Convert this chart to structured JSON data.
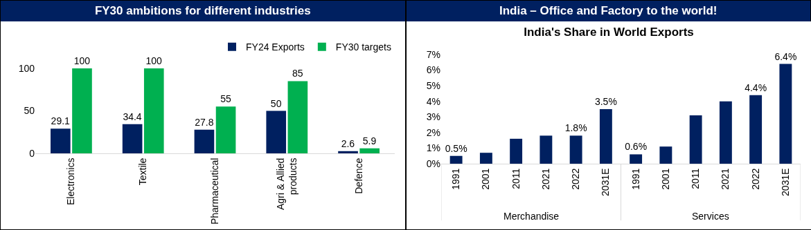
{
  "chart_data": [
    {
      "type": "bar",
      "title": "FY30 ambitions for different industries",
      "categories": [
        "Electronics",
        "Textile",
        "Pharmaceutical",
        "Agri & Allied products",
        "Defence"
      ],
      "series": [
        {
          "name": "FY24 Exports",
          "color": "#002060",
          "values": [
            29.1,
            34.4,
            27.8,
            50,
            2.6
          ]
        },
        {
          "name": "FY30 targets",
          "color": "#00b050",
          "values": [
            100,
            100,
            55,
            85,
            5.9
          ]
        }
      ],
      "ylim": [
        0,
        100
      ],
      "yticks": [
        0,
        50,
        100
      ],
      "data_labels": true,
      "legend": "top right",
      "grid": false
    },
    {
      "type": "bar",
      "title": "India – Office and Factory to the world!",
      "subtitle": "India's Share in World Exports",
      "categories": [
        "1991",
        "2001",
        "2011",
        "2021",
        "2022",
        "2031E",
        "1991",
        "2001",
        "2011",
        "2021",
        "2022",
        "2031E"
      ],
      "values": [
        0.5,
        0.7,
        1.6,
        1.8,
        1.8,
        3.5,
        0.6,
        1.1,
        3.1,
        4.0,
        4.4,
        6.4
      ],
      "color": "#002060",
      "value_labels": [
        "0.5%",
        null,
        null,
        null,
        "1.8%",
        "3.5%",
        "0.6%",
        null,
        null,
        null,
        "4.4%",
        "6.4%"
      ],
      "ylim": [
        0,
        7
      ],
      "yticks": [
        {
          "value": 0,
          "label": "0%"
        },
        {
          "value": 1,
          "label": "1%"
        },
        {
          "value": 2,
          "label": "2%"
        },
        {
          "value": 3,
          "label": "3%"
        },
        {
          "value": 4,
          "label": "4%"
        },
        {
          "value": 5,
          "label": "5%"
        },
        {
          "value": 6,
          "label": "6%"
        },
        {
          "value": 7,
          "label": "7%"
        }
      ],
      "annotations": [
        "Merchandise",
        "Services"
      ],
      "grid": false
    }
  ]
}
